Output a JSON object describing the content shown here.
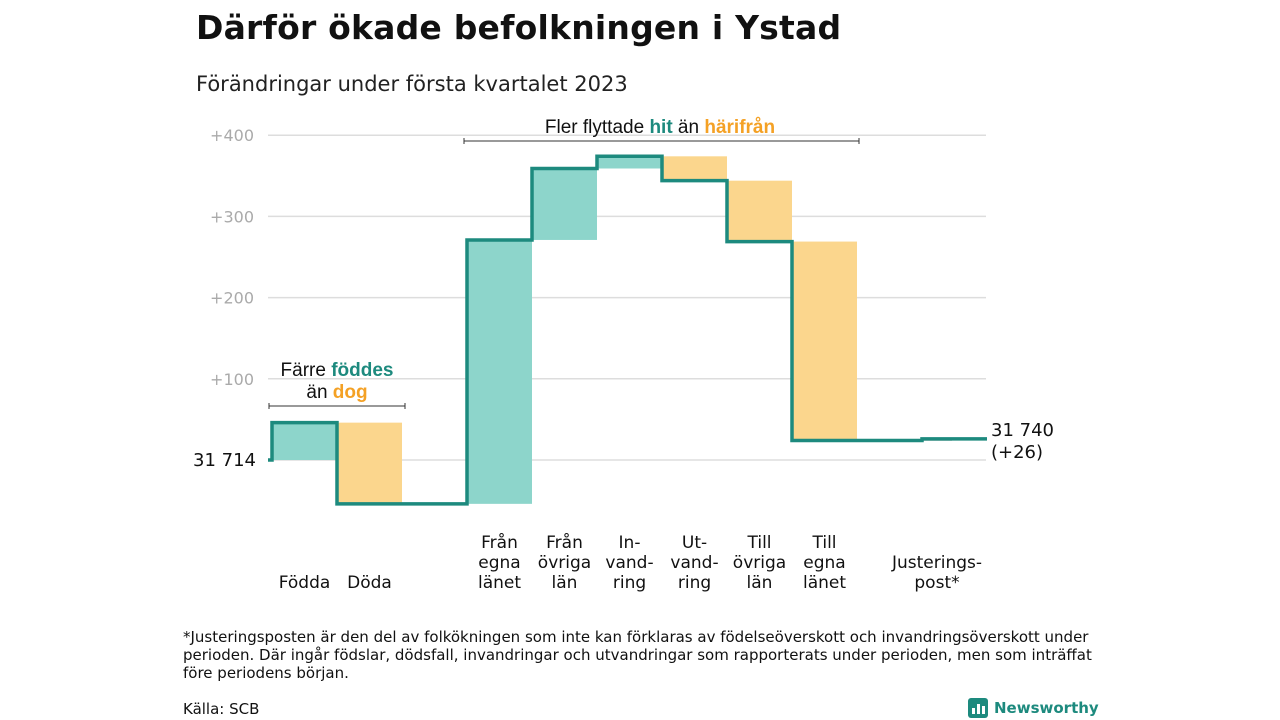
{
  "header": {
    "title": "Därför ökade befolkningen i Ystad",
    "subtitle": "Förändringar under första kvartalet 2023"
  },
  "chart_data": {
    "type": "waterfall",
    "baseline_value": 31714,
    "baseline_label": "31 714",
    "end_label_line1": "31 740",
    "end_label_line2": "(+26)",
    "yticks": [
      {
        "value": 100,
        "label": "+100"
      },
      {
        "value": 200,
        "label": "+200"
      },
      {
        "value": 300,
        "label": "+300"
      },
      {
        "value": 400,
        "label": "+400"
      }
    ],
    "ylim": [
      -60,
      410
    ],
    "steps": [
      {
        "label_lines": [
          "Födda"
        ],
        "change": 46,
        "kind": "positive"
      },
      {
        "label_lines": [
          "Döda"
        ],
        "change": -100,
        "kind": "negative"
      },
      {
        "label_lines": [
          "Från",
          "egna",
          "länet"
        ],
        "change": 325,
        "kind": "positive"
      },
      {
        "label_lines": [
          "Från",
          "övriga",
          "län"
        ],
        "change": 88,
        "kind": "positive"
      },
      {
        "label_lines": [
          "In-",
          "vand-",
          "ring"
        ],
        "change": 15,
        "kind": "positive"
      },
      {
        "label_lines": [
          "Ut-",
          "vand-",
          "ring"
        ],
        "change": -30,
        "kind": "negative"
      },
      {
        "label_lines": [
          "Till",
          "övriga",
          "län"
        ],
        "change": -75,
        "kind": "negative"
      },
      {
        "label_lines": [
          "Till",
          "egna",
          "länet"
        ],
        "change": -245,
        "kind": "negative"
      },
      {
        "label_lines": [
          "Justerings-",
          "post*"
        ],
        "change": 2,
        "kind": "adjustment"
      }
    ],
    "annotations": {
      "births": {
        "line1_prefix": "Färre ",
        "line1_highlight": "föddes",
        "line2_prefix": "än ",
        "line2_highlight": "dog"
      },
      "moves": {
        "prefix": "Fler flyttade ",
        "highlight1": "hit",
        "middle": " än ",
        "highlight2": "härifrån"
      }
    },
    "colors": {
      "positive_fill": "#8dd5cb",
      "negative_fill": "#fbd68d",
      "adjustment_fill": "#cccccc",
      "step_line": "#1d8a7e",
      "accent_teal": "#1d8a7e",
      "accent_orange": "#f4a125",
      "grid": "#dddddd",
      "tick_text": "#aaaaaa"
    }
  },
  "footnote": "*Justeringsposten är den del av folkökningen som inte kan förklaras av födelseöverskott och invandringsöverskott under perioden. Där ingår födslar, dödsfall, invandringar och utvandringar som rapporterats under perioden, men som inträffat före periodens början.",
  "source": "Källa: SCB",
  "brand": {
    "name": "Newsworthy",
    "icon": "bar-chart-icon"
  }
}
